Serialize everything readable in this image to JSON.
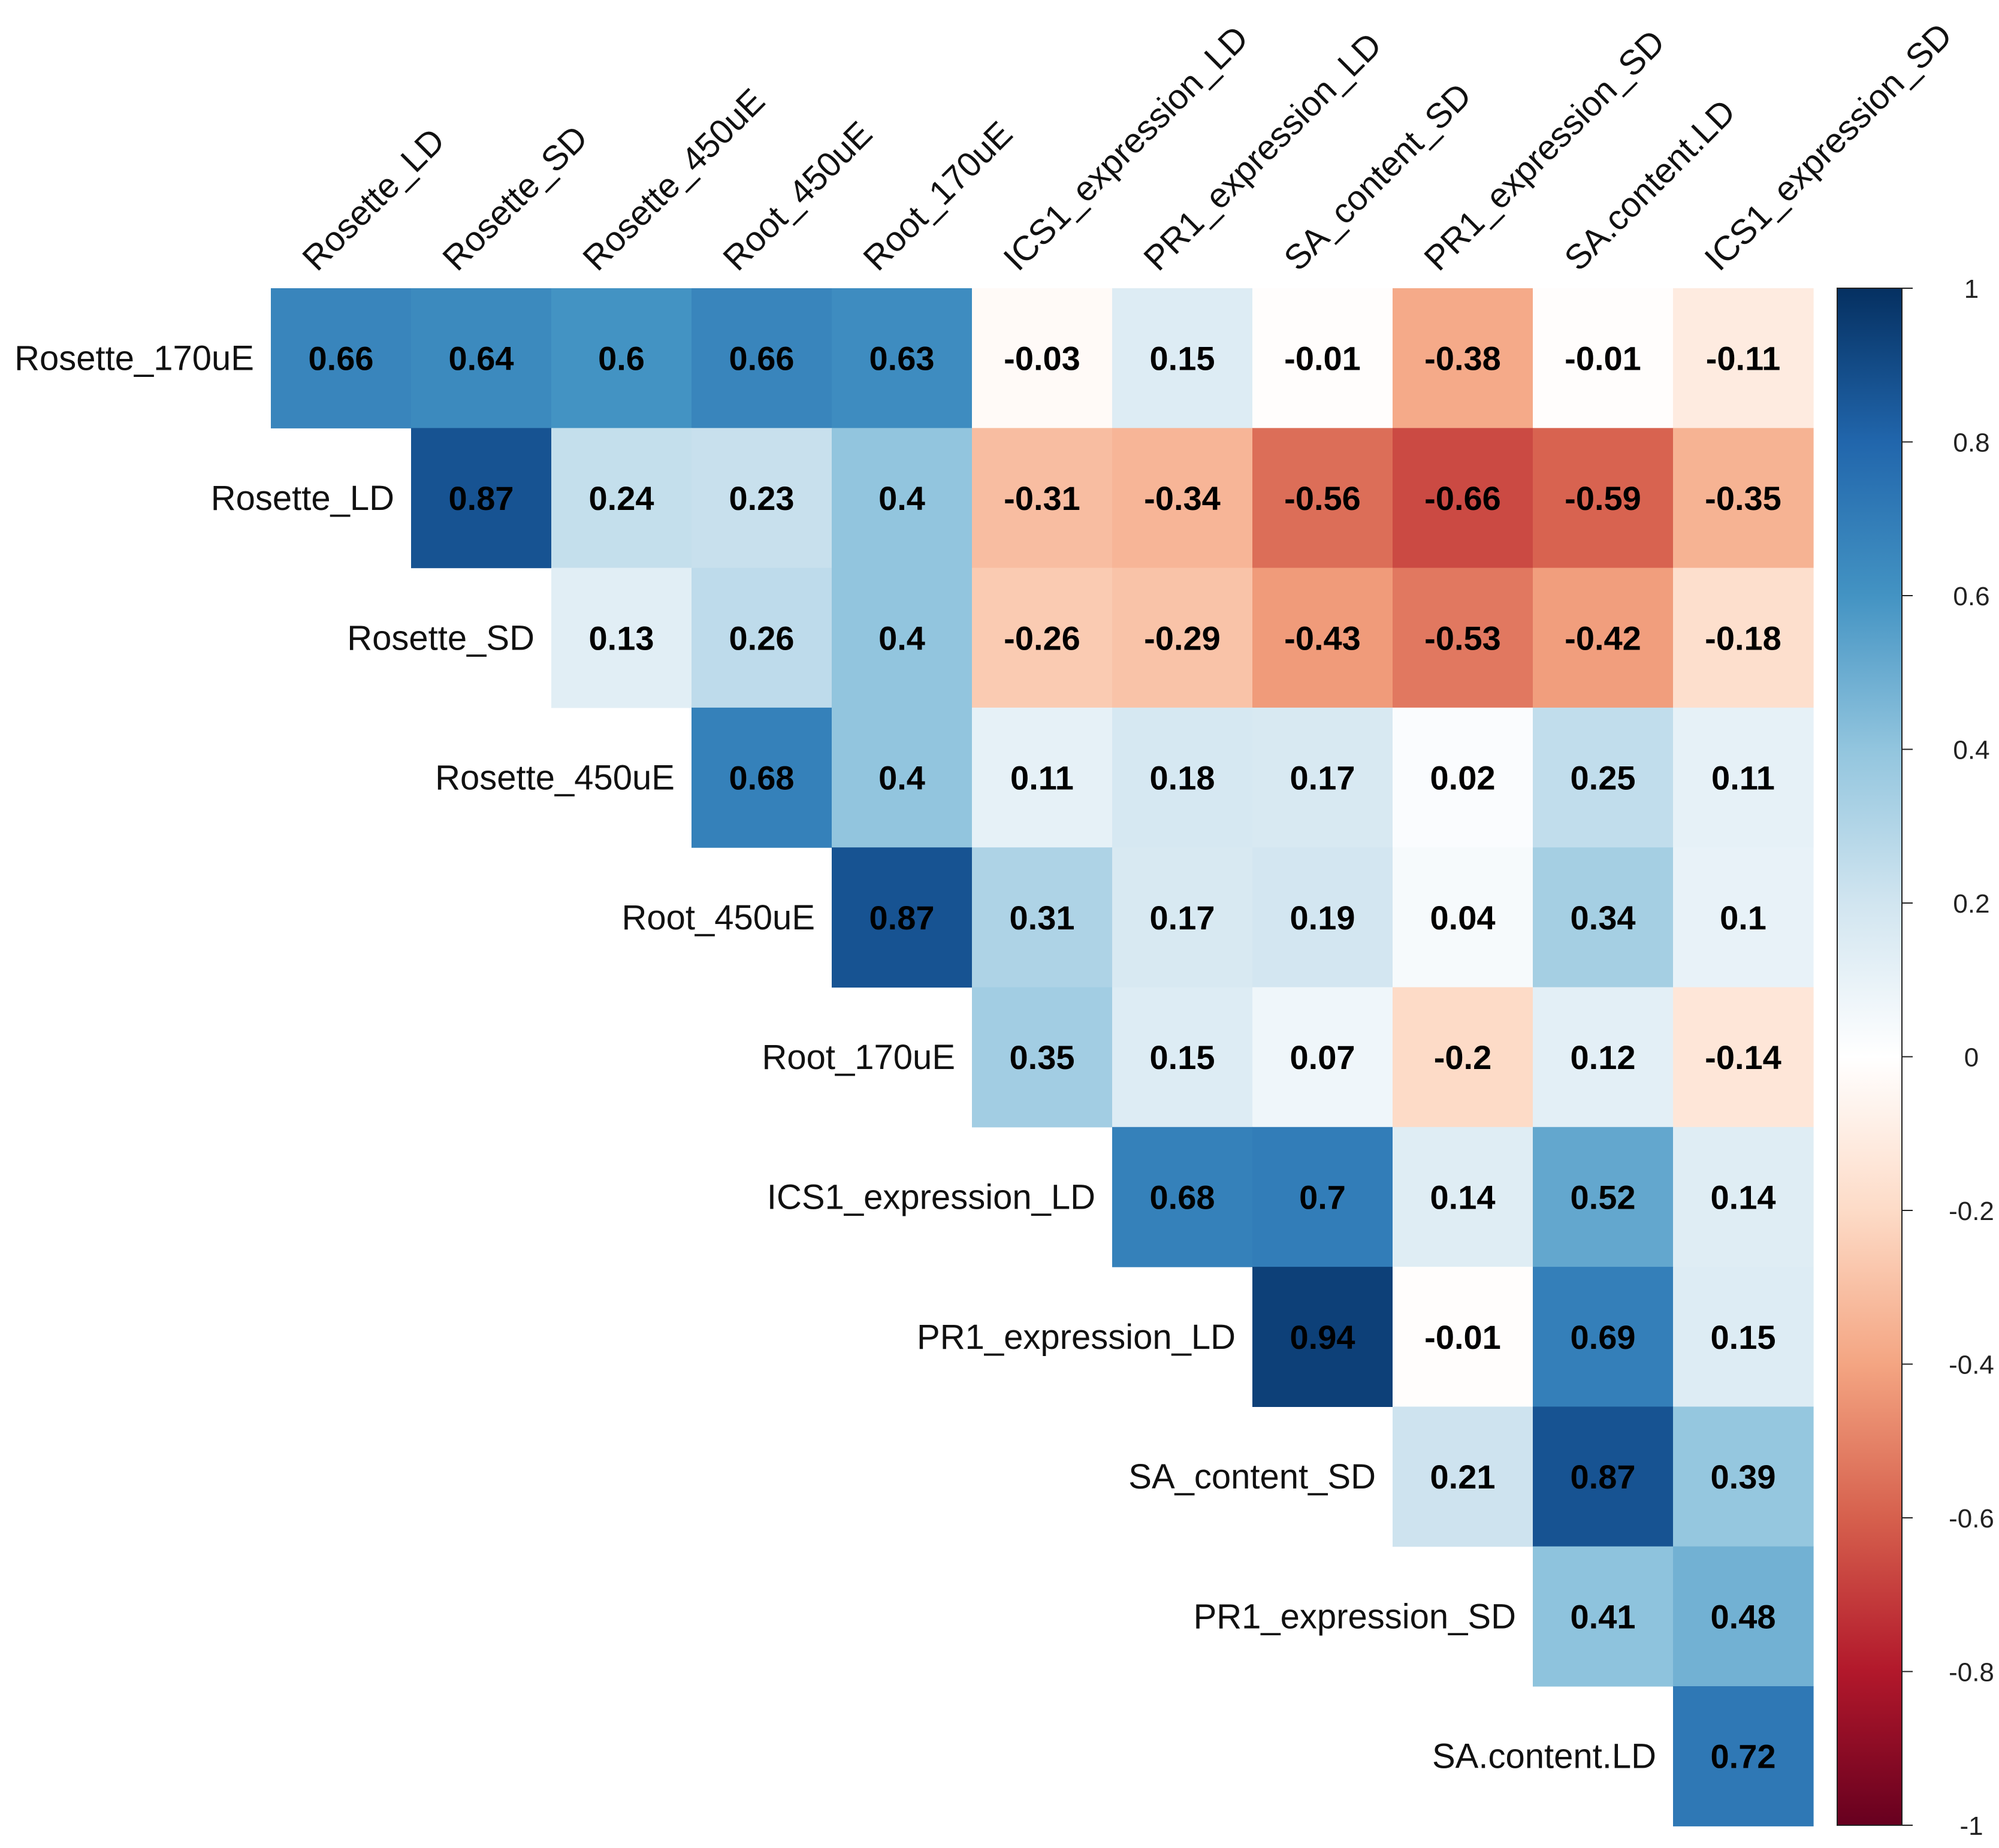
{
  "chart_data": {
    "type": "heatmap",
    "variables": [
      "Rosette_170uE",
      "Rosette_LD",
      "Rosette_SD",
      "Rosette_450uE",
      "Root_450uE",
      "Root_170uE",
      "ICS1_expression_LD",
      "PR1_expression_LD",
      "SA_content_SD",
      "PR1_expression_SD",
      "SA.content.LD",
      "ICS1_expression_SD"
    ],
    "row_labels": [
      "Rosette_170uE",
      "Rosette_LD",
      "Rosette_SD",
      "Rosette_450uE",
      "Root_450uE",
      "Root_170uE",
      "ICS1_expression_LD",
      "PR1_expression_LD",
      "SA_content_SD",
      "PR1_expression_SD",
      "SA.content.LD"
    ],
    "column_labels": [
      "Rosette_LD",
      "Rosette_SD",
      "Rosette_450uE",
      "Root_450uE",
      "Root_170uE",
      "ICS1_expression_LD",
      "PR1_expression_LD",
      "SA_content_SD",
      "PR1_expression_SD",
      "SA.content.LD",
      "ICS1_expression_SD"
    ],
    "matrix_shape": "upper-triangle",
    "values": [
      [
        0.66,
        0.64,
        0.6,
        0.66,
        0.63,
        -0.03,
        0.15,
        -0.01,
        -0.38,
        -0.01,
        -0.11
      ],
      [
        0.87,
        0.24,
        0.23,
        0.4,
        -0.31,
        -0.34,
        -0.56,
        -0.66,
        -0.59,
        -0.35
      ],
      [
        0.13,
        0.26,
        0.4,
        -0.26,
        -0.29,
        -0.43,
        -0.53,
        -0.42,
        -0.18
      ],
      [
        0.68,
        0.4,
        0.11,
        0.18,
        0.17,
        0.02,
        0.25,
        0.11
      ],
      [
        0.87,
        0.31,
        0.17,
        0.19,
        0.04,
        0.34,
        0.1
      ],
      [
        0.35,
        0.15,
        0.07,
        -0.2,
        0.12,
        -0.14
      ],
      [
        0.68,
        0.7,
        0.14,
        0.52,
        0.14
      ],
      [
        0.94,
        -0.01,
        0.69,
        0.15
      ],
      [
        0.21,
        0.87,
        0.39
      ],
      [
        0.41,
        0.48
      ],
      [
        0.72
      ]
    ],
    "color_scale": {
      "range": [
        -1,
        1
      ],
      "ticks": [
        "1",
        "0.8",
        "0.6",
        "0.4",
        "0.2",
        "0",
        "-0.2",
        "-0.4",
        "-0.6",
        "-0.8",
        "-1"
      ],
      "colors": [
        "#67001F",
        "#B2182B",
        "#D6604D",
        "#F4A582",
        "#FDDBC7",
        "#FFFFFF",
        "#D1E5F0",
        "#92C5DE",
        "#4393C3",
        "#2166AC",
        "#053061"
      ],
      "legend_position": "right"
    },
    "title": "",
    "xlabel": "",
    "ylabel": ""
  }
}
